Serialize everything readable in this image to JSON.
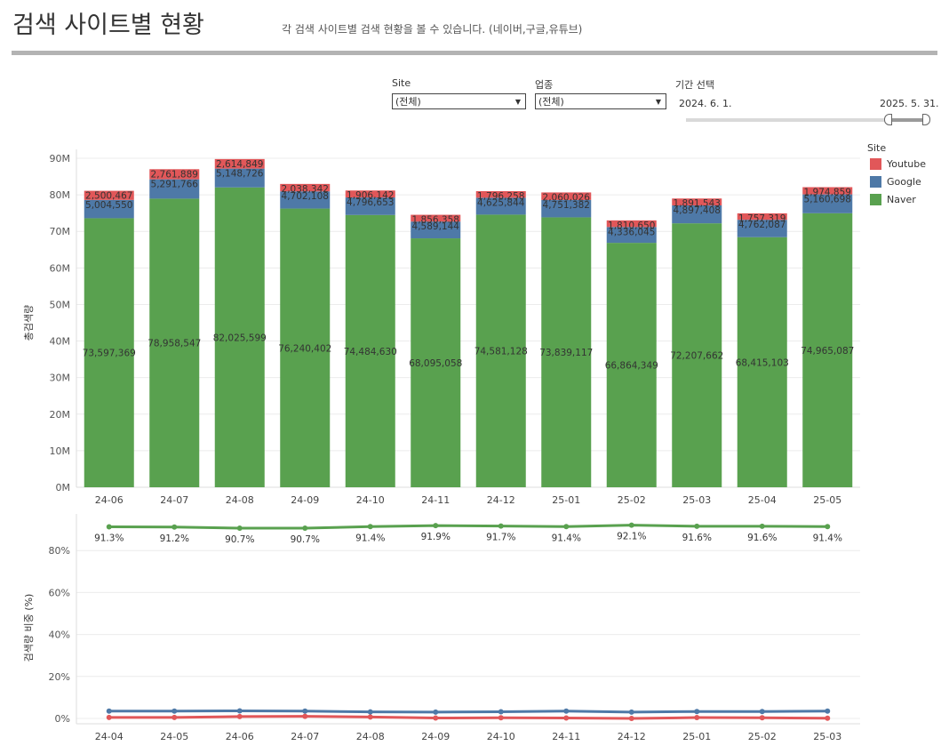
{
  "header": {
    "title": "검색 사이트별 현황",
    "subtitle": "각 검색 사이트별 검색 현황을 볼 수 있습니다. (네이버,구글,유튜브)"
  },
  "filters": {
    "site": {
      "label": "Site",
      "value": "(전체)"
    },
    "industry": {
      "label": "업종",
      "value": "(전체)"
    },
    "period": {
      "label": "기간 선택",
      "start": "2024. 6. 1.",
      "end": "2025. 5. 31."
    }
  },
  "legend": {
    "title": "Site",
    "items": [
      {
        "name": "Youtube",
        "color": "#e15759"
      },
      {
        "name": "Google",
        "color": "#4e79a7"
      },
      {
        "name": "Naver",
        "color": "#59a14f"
      }
    ]
  },
  "chart_data": [
    {
      "type": "bar",
      "stacked": true,
      "ylabel": "총검색량",
      "ylim": [
        0,
        90000000
      ],
      "yticks": [
        "0M",
        "10M",
        "20M",
        "30M",
        "40M",
        "50M",
        "60M",
        "70M",
        "80M",
        "90M"
      ],
      "categories": [
        "24-06",
        "24-07",
        "24-08",
        "24-09",
        "24-10",
        "24-11",
        "24-12",
        "25-01",
        "25-02",
        "25-03",
        "25-04",
        "25-05"
      ],
      "series": [
        {
          "name": "Naver",
          "color": "#59a14f",
          "values": [
            73597369,
            78958547,
            82025599,
            76240402,
            74484630,
            68095058,
            74581128,
            73839117,
            66864349,
            72207662,
            68415103,
            74965087
          ],
          "labels": [
            "73,597,369",
            "78,958,547",
            "82,025,599",
            "76,240,402",
            "74,484,630",
            "68,095,058",
            "74,581,128",
            "73,839,117",
            "66,864,349",
            "72,207,662",
            "68,415,103",
            "74,965,087"
          ]
        },
        {
          "name": "Google",
          "color": "#4e79a7",
          "values": [
            5004550,
            5291766,
            5148726,
            4702108,
            4796653,
            4589144,
            4625844,
            4751382,
            4336045,
            4897408,
            4762087,
            5160698
          ],
          "labels": [
            "5,004,550",
            "5,291,766",
            "5,148,726",
            "4,702,108",
            "4,796,653",
            "4,589,144",
            "4,625,844",
            "4,751,382",
            "4,336,045",
            "4,897,408",
            "4,762,087",
            "5,160,698"
          ]
        },
        {
          "name": "Youtube",
          "color": "#e15759",
          "values": [
            2500467,
            2761889,
            2614849,
            2038342,
            1906142,
            1856358,
            1796258,
            2060026,
            1810650,
            1891543,
            1757319,
            1974859
          ],
          "labels": [
            "2,500,467",
            "2,761,889",
            "2,614,849",
            "2,038,342",
            "1,906,142",
            "1,856,358",
            "1,796,258",
            "2,060,026",
            "1,810,650",
            "1,891,543",
            "1,757,319",
            "1,974,859"
          ]
        }
      ]
    },
    {
      "type": "line",
      "ylabel": "검색량 비중 (%)",
      "ylim": [
        0,
        100
      ],
      "yticks": [
        "0%",
        "20%",
        "40%",
        "60%",
        "80%"
      ],
      "categories": [
        "24-04",
        "24-05",
        "24-06",
        "24-07",
        "24-08",
        "24-09",
        "24-10",
        "24-11",
        "24-12",
        "25-01",
        "25-02",
        "25-03"
      ],
      "series": [
        {
          "name": "Naver",
          "color": "#59a14f",
          "values": [
            91.3,
            91.2,
            90.7,
            90.7,
            91.4,
            91.9,
            91.7,
            91.4,
            92.1,
            91.6,
            91.6,
            91.4
          ],
          "labels": [
            "91.3%",
            "91.2%",
            "90.7%",
            "90.7%",
            "91.4%",
            "91.9%",
            "91.7%",
            "91.4%",
            "92.1%",
            "91.6%",
            "91.6%",
            "91.4%"
          ]
        },
        {
          "name": "Google",
          "color": "#4e79a7",
          "values": [
            3.5,
            3.5,
            3.6,
            3.5,
            3.1,
            3.0,
            3.2,
            3.5,
            3.0,
            3.3,
            3.3,
            3.5
          ]
        },
        {
          "name": "Youtube",
          "color": "#e15759",
          "values": [
            0.5,
            0.5,
            0.9,
            1.0,
            0.7,
            0.2,
            0.3,
            0.2,
            0.0,
            0.4,
            0.3,
            0.1
          ]
        }
      ]
    }
  ]
}
